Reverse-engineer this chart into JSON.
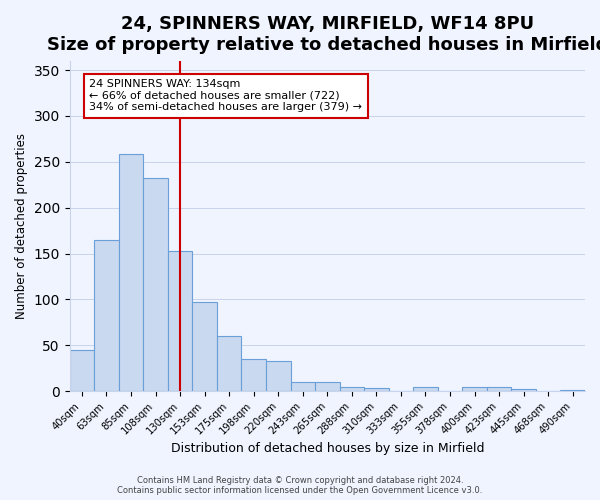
{
  "title": "24, SPINNERS WAY, MIRFIELD, WF14 8PU",
  "subtitle": "Size of property relative to detached houses in Mirfield",
  "xlabel": "Distribution of detached houses by size in Mirfield",
  "ylabel": "Number of detached properties",
  "bar_labels": [
    "40sqm",
    "63sqm",
    "85sqm",
    "108sqm",
    "130sqm",
    "153sqm",
    "175sqm",
    "198sqm",
    "220sqm",
    "243sqm",
    "265sqm",
    "288sqm",
    "310sqm",
    "333sqm",
    "355sqm",
    "378sqm",
    "400sqm",
    "423sqm",
    "445sqm",
    "468sqm",
    "490sqm"
  ],
  "bar_values": [
    45,
    165,
    258,
    232,
    153,
    97,
    60,
    35,
    33,
    10,
    10,
    5,
    3,
    0,
    4,
    0,
    4,
    5,
    2,
    0,
    1
  ],
  "bar_color": "#c9d9f0",
  "bar_edge_color": "#6a9fd8",
  "vline_x": 4,
  "vline_color": "#cc0000",
  "annotation_text": "24 SPINNERS WAY: 134sqm\n← 66% of detached houses are smaller (722)\n34% of semi-detached houses are larger (379) →",
  "annotation_box_color": "#ffffff",
  "annotation_box_edge_color": "#cc0000",
  "ylim": [
    0,
    360
  ],
  "yticks": [
    0,
    50,
    100,
    150,
    200,
    250,
    300,
    350
  ],
  "footer_line1": "Contains HM Land Registry data © Crown copyright and database right 2024.",
  "footer_line2": "Contains public sector information licensed under the Open Government Licence v3.0.",
  "title_fontsize": 13,
  "subtitle_fontsize": 11,
  "background_color": "#f0f4ff"
}
